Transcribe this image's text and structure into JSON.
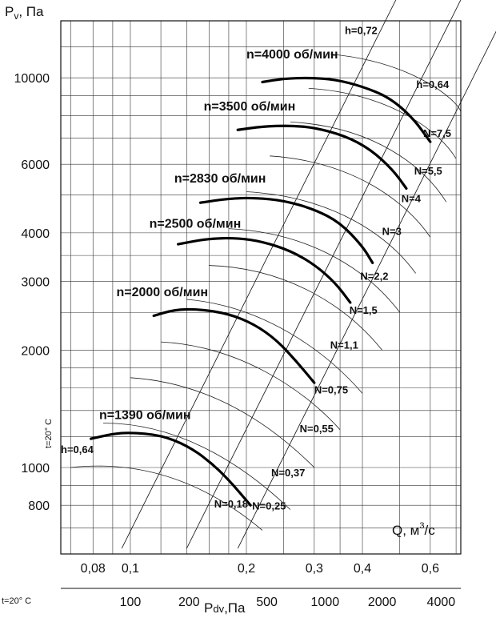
{
  "chart_data": {
    "type": "line",
    "title": "",
    "ylabel": "Pv, Па",
    "xlabel_flow": "Q, м3/с",
    "xlabel_dynamic": "Pdv,Па",
    "temperature_note": "t=20° C",
    "x_scale": "log",
    "y_scale": "log",
    "xlim": [
      0.066,
      0.72
    ],
    "ylim": [
      600,
      14000
    ],
    "y_ticks": [
      {
        "value": 800,
        "label": "800"
      },
      {
        "value": 1000,
        "label": "1000"
      },
      {
        "value": 2000,
        "label": "2000"
      },
      {
        "value": 3000,
        "label": "3000"
      },
      {
        "value": 4000,
        "label": "4000"
      },
      {
        "value": 6000,
        "label": "6000"
      },
      {
        "value": 10000,
        "label": "10000"
      }
    ],
    "x_ticks": [
      {
        "value": 0.08,
        "label": "0,08"
      },
      {
        "value": 0.1,
        "label": "0,1"
      },
      {
        "value": 0.2,
        "label": "0,2"
      },
      {
        "value": 0.3,
        "label": "0,3"
      },
      {
        "value": 0.4,
        "label": "0,4"
      },
      {
        "value": 0.6,
        "label": "0,6"
      }
    ],
    "pdv_ticks": [
      {
        "q": 0.1,
        "label": "100"
      },
      {
        "q": 0.142,
        "label": "200"
      },
      {
        "q": 0.226,
        "label": "500"
      },
      {
        "q": 0.32,
        "label": "1000"
      },
      {
        "q": 0.45,
        "label": "2000"
      },
      {
        "q": 0.64,
        "label": "4000"
      }
    ],
    "grid": true,
    "series": [
      {
        "name": "n=1390 об/мин",
        "x": [
          0.079,
          0.09,
          0.1,
          0.12,
          0.14,
          0.16,
          0.18,
          0.205
        ],
        "y": [
          1185,
          1220,
          1230,
          1210,
          1140,
          1040,
          930,
          800
        ]
      },
      {
        "name": "n=2000 об/мин",
        "x": [
          0.115,
          0.13,
          0.15,
          0.18,
          0.21,
          0.24,
          0.27,
          0.3
        ],
        "y": [
          2450,
          2540,
          2550,
          2480,
          2330,
          2120,
          1870,
          1650
        ]
      },
      {
        "name": "n=2500 об/мин",
        "x": [
          0.133,
          0.16,
          0.19,
          0.22,
          0.26,
          0.3,
          0.34,
          0.372
        ],
        "y": [
          3740,
          3870,
          3880,
          3800,
          3600,
          3320,
          2980,
          2650
        ]
      },
      {
        "name": "n=2830 об/мин",
        "x": [
          0.152,
          0.18,
          0.21,
          0.25,
          0.3,
          0.35,
          0.4,
          0.425
        ],
        "y": [
          4780,
          4900,
          4920,
          4840,
          4600,
          4250,
          3700,
          3350
        ]
      },
      {
        "name": "n=3500 об/мин",
        "x": [
          0.19,
          0.22,
          0.26,
          0.3,
          0.36,
          0.42,
          0.48,
          0.52
        ],
        "y": [
          7350,
          7500,
          7540,
          7450,
          7100,
          6550,
          5800,
          5200
        ]
      },
      {
        "name": "n=4000 об/мин",
        "x": [
          0.22,
          0.25,
          0.29,
          0.34,
          0.4,
          0.47,
          0.54,
          0.6
        ],
        "y": [
          9750,
          9950,
          10000,
          9900,
          9500,
          8900,
          7900,
          6850
        ]
      }
    ],
    "efficiency_labels": [
      "h=0,72",
      "h=0,64",
      "h=0,64"
    ],
    "power_labels": [
      "N=0,18",
      "N=0,25",
      "N=0,37",
      "N=0,55",
      "N=0,75",
      "N=1,1",
      "N=1,5",
      "N=2,2",
      "N=3",
      "N=4",
      "N=5,5",
      "N=7,5"
    ],
    "annotations": {
      "q_unit_main": "Q, м",
      "q_unit_sup": "3",
      "q_unit_tail": "/с",
      "pv_main": "P",
      "pv_sub": "v",
      "pv_tail": ", Па",
      "pdv_main": "P",
      "pdv_sub": "dv",
      "pdv_tail": ",Па"
    }
  }
}
